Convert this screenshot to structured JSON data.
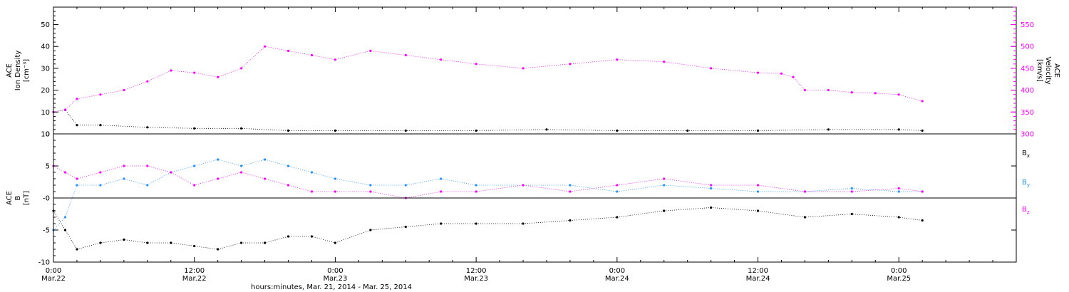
{
  "chart_data": [
    {
      "type": "scatter",
      "panel": "ion-density-velocity",
      "left_axis": {
        "label_lines": [
          "ACE",
          "Ion Density",
          "[cm⁻³]"
        ],
        "ylim": [
          0,
          58
        ],
        "ticks": [
          0,
          10,
          20,
          30,
          40,
          50
        ]
      },
      "right_axis": {
        "label_lines": [
          "ACE",
          "Velocity",
          "[km/s]"
        ],
        "color": "#ff00ff",
        "ylim": [
          300,
          590
        ],
        "ticks": [
          300,
          350,
          400,
          450,
          500,
          550
        ]
      },
      "series": [
        {
          "axis": "left",
          "color": "#000000",
          "x": [
            0,
            1,
            2,
            4,
            8,
            12,
            16,
            20,
            24,
            30,
            36,
            42,
            48,
            54,
            60,
            66,
            72,
            74
          ],
          "values": [
            10,
            11,
            4,
            4,
            3,
            2.5,
            2.5,
            1.5,
            1.5,
            1.5,
            1.5,
            2,
            1.5,
            1.5,
            1.5,
            2,
            2,
            1.5
          ]
        },
        {
          "axis": "right",
          "color": "#ff00ff",
          "x": [
            0,
            1,
            2,
            4,
            6,
            8,
            10,
            12,
            14,
            16,
            18,
            20,
            22,
            24,
            27,
            30,
            33,
            36,
            40,
            44,
            48,
            52,
            56,
            60,
            62,
            63,
            64,
            66,
            68,
            70,
            72,
            74
          ],
          "values": [
            350,
            355,
            380,
            390,
            400,
            420,
            445,
            440,
            430,
            450,
            500,
            490,
            480,
            470,
            490,
            480,
            470,
            460,
            450,
            460,
            470,
            465,
            450,
            440,
            438,
            430,
            400,
            400,
            395,
            393,
            390,
            375
          ]
        }
      ]
    },
    {
      "type": "scatter",
      "panel": "magnetic-field",
      "left_axis": {
        "label_lines": [
          "ACE",
          "B",
          "[nT]"
        ],
        "ylim": [
          -10,
          10
        ],
        "ticks": [
          -10,
          -5,
          0,
          5,
          10
        ],
        "tick_labels": [
          "-10",
          "-5",
          "-0",
          "5",
          "10"
        ]
      },
      "zero_line": true,
      "legend": [
        "Bx",
        "By",
        "Bz"
      ],
      "legend_placement": "right-outside",
      "series": [
        {
          "name": "Bx",
          "color": "#000000",
          "x": [
            0,
            1,
            2,
            4,
            6,
            8,
            10,
            12,
            14,
            16,
            18,
            20,
            22,
            24,
            27,
            30,
            33,
            36,
            40,
            44,
            48,
            52,
            56,
            60,
            64,
            68,
            72,
            74
          ],
          "values": [
            -2,
            -5,
            -8,
            -7,
            -6.5,
            -7,
            -7,
            -7.5,
            -8,
            -7,
            -7,
            -6,
            -6,
            -7,
            -5,
            -4.5,
            -4,
            -4,
            -4,
            -3.5,
            -3,
            -2,
            -1.5,
            -2,
            -3,
            -2.5,
            -3,
            -3.5
          ]
        },
        {
          "name": "By",
          "color": "#1e90ff",
          "x": [
            0,
            1,
            2,
            4,
            6,
            8,
            10,
            12,
            14,
            16,
            18,
            20,
            22,
            24,
            27,
            30,
            33,
            36,
            40,
            44,
            48,
            52,
            56,
            60,
            64,
            68,
            72,
            74
          ],
          "values": [
            -5,
            -3,
            2,
            2,
            3,
            2,
            4,
            5,
            6,
            5,
            6,
            5,
            4,
            3,
            2,
            2,
            3,
            2,
            2,
            2,
            1,
            2,
            1.5,
            1,
            1,
            1.5,
            1,
            1
          ]
        },
        {
          "name": "Bz",
          "color": "#ff00ff",
          "x": [
            0,
            1,
            2,
            4,
            6,
            8,
            10,
            12,
            14,
            16,
            18,
            20,
            22,
            24,
            27,
            30,
            33,
            36,
            40,
            44,
            48,
            52,
            56,
            60,
            64,
            68,
            72,
            74
          ],
          "values": [
            5,
            4,
            3,
            4,
            5,
            5,
            4,
            2,
            3,
            4,
            3,
            2,
            1,
            1,
            1,
            0,
            1,
            1,
            2,
            1,
            2,
            3,
            2,
            2,
            1,
            1,
            1.5,
            1
          ]
        }
      ],
      "xaxis": {
        "xlim": [
          0,
          82
        ],
        "tick_hours": [
          0,
          12,
          24,
          36,
          48,
          60,
          72
        ],
        "tick_time_labels": [
          "0:00",
          "12:00",
          "0:00",
          "12:00",
          "0:00",
          "12:00",
          "0:00"
        ],
        "tick_date_labels": [
          "Mar.22",
          "Mar.22",
          "Mar.23",
          "Mar.23",
          "Mar.24",
          "Mar.24",
          "Mar.25"
        ],
        "xlabel": "hours:minutes, Mar. 21, 2014 - Mar. 25, 2014"
      }
    }
  ]
}
